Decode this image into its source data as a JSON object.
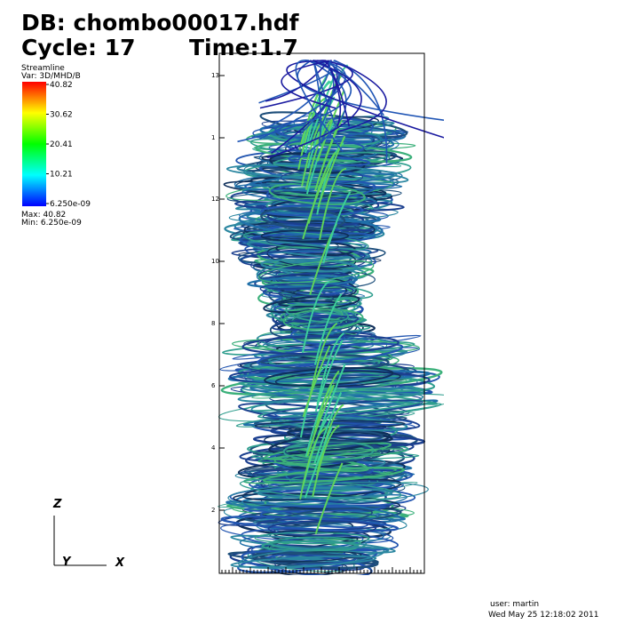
{
  "header": {
    "database": "DB: chombo00017.hdf",
    "cycle": "Cycle: 17",
    "time": "Time:1.7"
  },
  "legend": {
    "plot": "Streamline",
    "variable": "Var: 3D/MHD/B",
    "labels": [
      "40.82",
      "30.62",
      "20.41",
      "10.21",
      "6.250e-09"
    ],
    "max": "Max: 40.82",
    "min": "Min: 6.250e-09"
  },
  "axes": {
    "z": "Z",
    "y": "Y",
    "x": "X",
    "labels": [
      "13",
      "1",
      "12",
      "10",
      "8",
      "6",
      "4",
      "2"
    ]
  },
  "footer": {
    "user": "user: martin",
    "date": "Wed May 25 12:18:02 2011"
  }
}
